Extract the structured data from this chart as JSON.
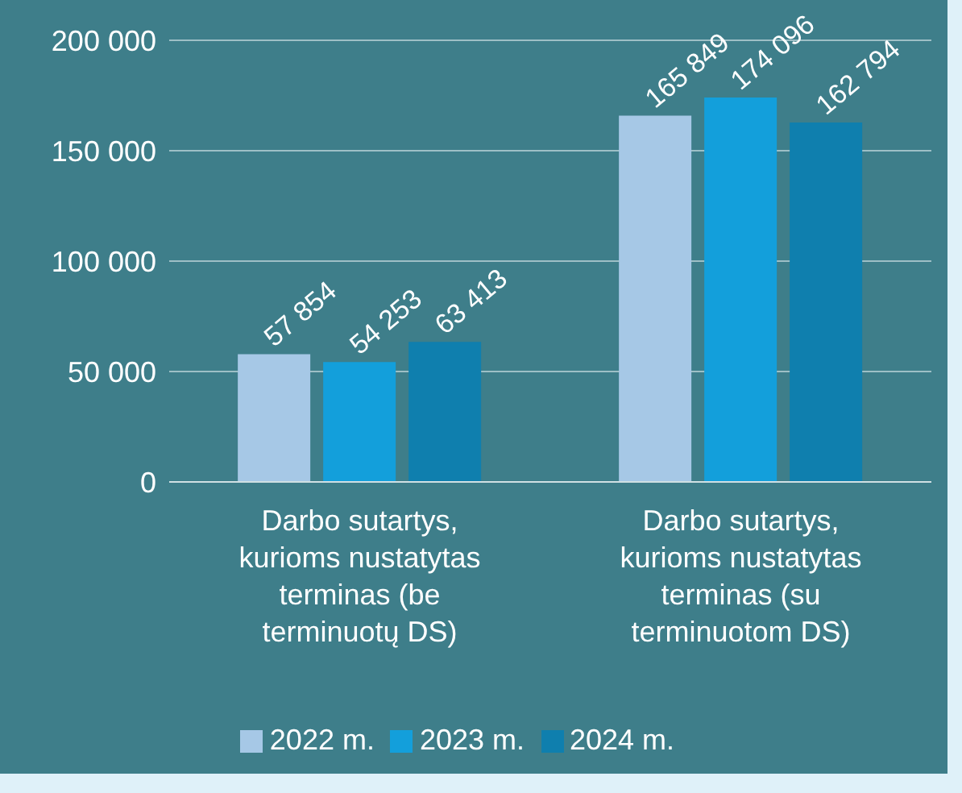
{
  "chart_data": {
    "type": "bar",
    "categories": [
      "Darbo sutartys, kurioms nustatytas terminas (be terminuotų DS)",
      "Darbo sutartys, kurioms nustatytas terminas (su terminuotom DS)"
    ],
    "series": [
      {
        "name": "2022 m.",
        "color": "#a6c8e6",
        "values": [
          57854,
          165849
        ]
      },
      {
        "name": "2023 m.",
        "color": "#139fdb",
        "values": [
          54253,
          174096
        ]
      },
      {
        "name": "2024 m.",
        "color": "#0f7fae",
        "values": [
          63413,
          162794
        ]
      }
    ],
    "ylim": [
      0,
      200000
    ],
    "yticks": [
      0,
      50000,
      100000,
      150000,
      200000
    ],
    "grid": "y",
    "legend": "bottom",
    "data_labels": true
  }
}
